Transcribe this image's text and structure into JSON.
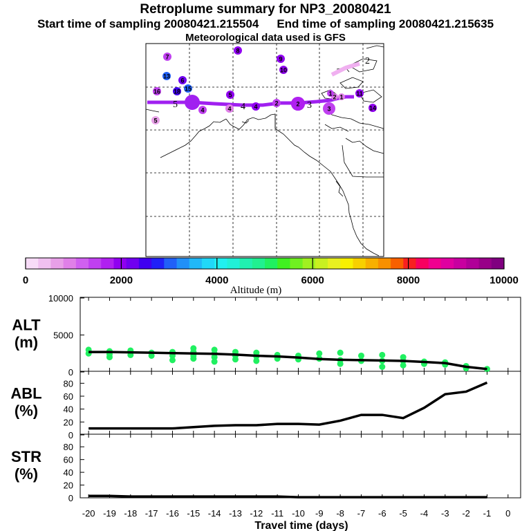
{
  "header": {
    "title": "Retroplume summary for NP3_20080421",
    "start_label": "Start time of sampling 20080421.215504",
    "end_label": "End time of sampling 20080421.215635",
    "met_label": "Meteorological data used is GFS"
  },
  "colorbar": {
    "ticks": [
      "0",
      "2000",
      "4000",
      "6000",
      "8000",
      "10000"
    ],
    "tick_values": [
      0,
      2000,
      4000,
      6000,
      8000,
      10000
    ],
    "label": "Altitude (m)",
    "min": 0,
    "max": 10000,
    "colors": [
      "#f8dcf8",
      "#f0c0f0",
      "#e8a0e8",
      "#e080e8",
      "#d060f0",
      "#c040f0",
      "#b020f0",
      "#9000f0",
      "#7000f0",
      "#4000f0",
      "#2020f8",
      "#2060f8",
      "#2090f8",
      "#20b8f8",
      "#20d8f8",
      "#20f0f0",
      "#20f0d8",
      "#20f0b0",
      "#20f090",
      "#20f060",
      "#40f020",
      "#70f020",
      "#a0f020",
      "#c8f020",
      "#e8f020",
      "#f8f000",
      "#f8d000",
      "#f8b000",
      "#f89000",
      "#f86000",
      "#f82020",
      "#f80060",
      "#f00090",
      "#e000a0",
      "#c800a0",
      "#b00098",
      "#980088",
      "#800080"
    ]
  },
  "map": {
    "trajectory_labels": [
      "5",
      "6",
      "4",
      "3",
      "2"
    ],
    "markers": [
      {
        "label": "7",
        "color": "#c040f0"
      },
      {
        "label": "8",
        "color": "#9000f0"
      },
      {
        "label": "9",
        "color": "#9000f0"
      },
      {
        "label": "10",
        "color": "#9000f0"
      },
      {
        "label": "13",
        "color": "#2060f8"
      },
      {
        "label": "6",
        "color": "#7000f0"
      },
      {
        "label": "16",
        "color": "#c040f0"
      },
      {
        "label": "18",
        "color": "#4000f0"
      },
      {
        "label": "15",
        "color": "#2060f8"
      },
      {
        "label": "5",
        "color": "#9000f0"
      },
      {
        "label": "5",
        "color": "#e8a0e8"
      },
      {
        "label": "4",
        "color": "#c040f0"
      },
      {
        "label": "4",
        "color": "#e080e8"
      },
      {
        "label": "4",
        "color": "#9000f0"
      },
      {
        "label": "2",
        "color": "#c040f0"
      },
      {
        "label": "2",
        "color": "#b020f0"
      },
      {
        "label": "3",
        "color": "#c040f0"
      },
      {
        "label": "2",
        "color": "#e080e8"
      },
      {
        "label": "1",
        "color": "#c040f0"
      },
      {
        "label": "11",
        "color": "#9000f0"
      },
      {
        "label": "1",
        "color": "#e080e8"
      },
      {
        "label": "14",
        "color": "#9000f0"
      }
    ]
  },
  "chart_data": [
    {
      "type": "line",
      "panel": "ALT",
      "ylabel": "ALT\n(m)",
      "ylabel_lines": [
        "ALT",
        "(m)"
      ],
      "ylim": [
        0,
        10000
      ],
      "yticks": [
        "0",
        "5000",
        "10000"
      ],
      "ytick_values": [
        0,
        5000,
        10000
      ],
      "x": [
        -20,
        -19,
        -18,
        -17,
        -16,
        -15,
        -14,
        -13,
        -12,
        -11,
        -10,
        -9,
        -8,
        -7,
        -6,
        -5,
        -4,
        -3,
        -2,
        -1
      ],
      "series": [
        {
          "name": "median altitude",
          "color": "#000000",
          "values": [
            2700,
            2700,
            2650,
            2600,
            2550,
            2500,
            2450,
            2350,
            2200,
            2100,
            1950,
            1750,
            1650,
            1600,
            1550,
            1500,
            1350,
            1200,
            700,
            400
          ]
        },
        {
          "name": "altitude spread",
          "color": "#20f060",
          "points": [
            [
              -20,
              3000
            ],
            [
              -20,
              2500
            ],
            [
              -19,
              2800
            ],
            [
              -19,
              2400
            ],
            [
              -19,
              2000
            ],
            [
              -18,
              2900
            ],
            [
              -18,
              2300
            ],
            [
              -17,
              2600
            ],
            [
              -17,
              2200
            ],
            [
              -16,
              2700
            ],
            [
              -16,
              2200
            ],
            [
              -16,
              1600
            ],
            [
              -15,
              3200
            ],
            [
              -15,
              2700
            ],
            [
              -15,
              2200
            ],
            [
              -15,
              1800
            ],
            [
              -14,
              3000
            ],
            [
              -14,
              2500
            ],
            [
              -14,
              2000
            ],
            [
              -14,
              1400
            ],
            [
              -13,
              2700
            ],
            [
              -13,
              2200
            ],
            [
              -13,
              1700
            ],
            [
              -12,
              2600
            ],
            [
              -12,
              2100
            ],
            [
              -12,
              1500
            ],
            [
              -11,
              2300
            ],
            [
              -11,
              1800
            ],
            [
              -10,
              2200
            ],
            [
              -10,
              1700
            ],
            [
              -9,
              2500
            ],
            [
              -9,
              1800
            ],
            [
              -8,
              2600
            ],
            [
              -8,
              1600
            ],
            [
              -8,
              1100
            ],
            [
              -7,
              2200
            ],
            [
              -7,
              1500
            ],
            [
              -6,
              2300
            ],
            [
              -6,
              1500
            ],
            [
              -6,
              700
            ],
            [
              -5,
              2000
            ],
            [
              -5,
              1500
            ],
            [
              -5,
              900
            ],
            [
              -4,
              1400
            ],
            [
              -4,
              1100
            ],
            [
              -3,
              1300
            ],
            [
              -3,
              1000
            ],
            [
              -2,
              800
            ],
            [
              -2,
              500
            ],
            [
              -1,
              400
            ]
          ]
        }
      ]
    },
    {
      "type": "line",
      "panel": "ABL",
      "ylabel": "ABL\n(%)",
      "ylabel_lines": [
        "ABL",
        "(%)"
      ],
      "ylim": [
        0,
        90
      ],
      "yticks": [
        "0",
        "20",
        "40",
        "60",
        "80"
      ],
      "ytick_values": [
        0,
        20,
        40,
        60,
        80
      ],
      "x": [
        -20,
        -19,
        -18,
        -17,
        -16,
        -15,
        -14,
        -13,
        -12,
        -11,
        -10,
        -9,
        -8,
        -7,
        -6,
        -5,
        -4,
        -3,
        -2,
        -1
      ],
      "series": [
        {
          "name": "ABL fraction",
          "color": "#000000",
          "values": [
            10,
            10,
            10,
            10,
            10,
            12,
            14,
            15,
            15,
            17,
            17,
            16,
            22,
            31,
            31,
            26,
            42,
            63,
            67,
            81
          ]
        }
      ]
    },
    {
      "type": "line",
      "panel": "STR",
      "ylabel": "STR\n(%)",
      "ylabel_lines": [
        "STR",
        "(%)"
      ],
      "ylim": [
        0,
        90
      ],
      "yticks": [
        "0",
        "20",
        "40",
        "60",
        "80"
      ],
      "ytick_values": [
        0,
        20,
        40,
        60,
        80
      ],
      "xlabel": "Travel time (days)",
      "xlim": [
        -20,
        0
      ],
      "xticks": [
        "-20",
        "-19",
        "-18",
        "-17",
        "-16",
        "-15",
        "-14",
        "-13",
        "-12",
        "-11",
        "-10",
        "-9",
        "-8",
        "-7",
        "-6",
        "-5",
        "-4",
        "-3",
        "-2",
        "-1",
        "0"
      ],
      "xtick_values": [
        -20,
        -19,
        -18,
        -17,
        -16,
        -15,
        -14,
        -13,
        -12,
        -11,
        -10,
        -9,
        -8,
        -7,
        -6,
        -5,
        -4,
        -3,
        -2,
        -1,
        0
      ],
      "x": [
        -20,
        -19,
        -18,
        -17,
        -16,
        -15,
        -14,
        -13,
        -12,
        -11,
        -10,
        -9,
        -8,
        -7,
        -6,
        -5,
        -4,
        -3,
        -2,
        -1
      ],
      "series": [
        {
          "name": "stratosphere fraction",
          "color": "#000000",
          "values": [
            3,
            3,
            2,
            2,
            2,
            2,
            2,
            2,
            2,
            2,
            1,
            1,
            1,
            1,
            1,
            1,
            1,
            1,
            1,
            1
          ]
        }
      ]
    }
  ]
}
